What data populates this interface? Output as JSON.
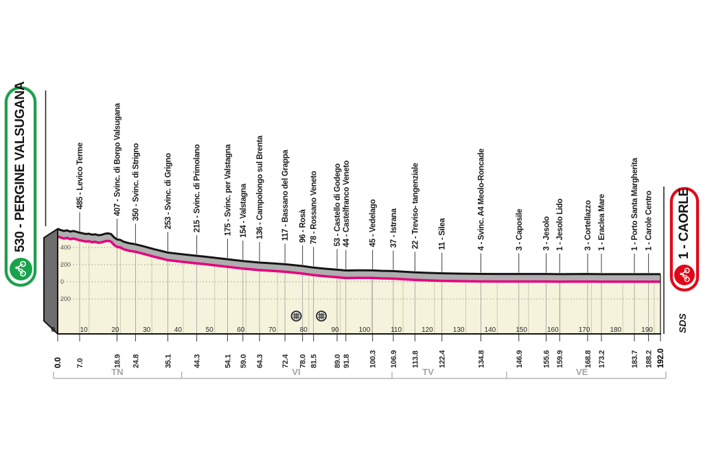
{
  "header": {
    "start_label": "530 - PERGINE VALSUGANA",
    "finish_label": "1 - CAORLE",
    "logo_text": "SDS"
  },
  "colors": {
    "start_accent": "#17a34a",
    "finish_accent": "#e30617",
    "profile_pink": "#e6007d",
    "terrain_fill": "#f6f3dc",
    "band_gray": "#aeaeae",
    "side_face_gray": "#6e6e6e",
    "edge_black": "#141414",
    "province_gray": "#a3a3a3",
    "grid_olive": "#cfcaa8"
  },
  "chart_data": {
    "type": "area",
    "title": "Stage altimetric profile Pergine Valsugana - Caorle",
    "x_unit": "km",
    "y_unit": "m",
    "x_range": [
      0,
      192
    ],
    "altitude_grid": [
      {
        "alt": 400,
        "label": "400"
      },
      {
        "alt": 200,
        "label": "200"
      },
      {
        "alt": 0,
        "label": "0"
      },
      {
        "alt": -200,
        "label": "200"
      }
    ],
    "km_grid_numbers": [
      10,
      20,
      30,
      40,
      50,
      60,
      70,
      80,
      90,
      100,
      110,
      120,
      130,
      140,
      150,
      160,
      170,
      180,
      190
    ],
    "km_zero_label": "0",
    "profile": [
      [
        0,
        530
      ],
      [
        1,
        515
      ],
      [
        2,
        505
      ],
      [
        3,
        512
      ],
      [
        4,
        498
      ],
      [
        5,
        505
      ],
      [
        6,
        495
      ],
      [
        7,
        485
      ],
      [
        8,
        478
      ],
      [
        9,
        470
      ],
      [
        10,
        473
      ],
      [
        11,
        462
      ],
      [
        12,
        466
      ],
      [
        13,
        455
      ],
      [
        14,
        460
      ],
      [
        15,
        472
      ],
      [
        16,
        478
      ],
      [
        17,
        470
      ],
      [
        18,
        430
      ],
      [
        18.9,
        407
      ],
      [
        20,
        400
      ],
      [
        21,
        380
      ],
      [
        22,
        370
      ],
      [
        23,
        360
      ],
      [
        24,
        355
      ],
      [
        24.8,
        350
      ],
      [
        27,
        330
      ],
      [
        29,
        310
      ],
      [
        31,
        290
      ],
      [
        33,
        272
      ],
      [
        35.1,
        253
      ],
      [
        38,
        240
      ],
      [
        41,
        228
      ],
      [
        44.3,
        215
      ],
      [
        47,
        205
      ],
      [
        50,
        192
      ],
      [
        54.1,
        175
      ],
      [
        59,
        154
      ],
      [
        64.3,
        136
      ],
      [
        68,
        128
      ],
      [
        72.4,
        117
      ],
      [
        78,
        96
      ],
      [
        81.5,
        78
      ],
      [
        85,
        65
      ],
      [
        89,
        53
      ],
      [
        91.8,
        44
      ],
      [
        96,
        46
      ],
      [
        100.3,
        45
      ],
      [
        103,
        40
      ],
      [
        106.9,
        37
      ],
      [
        110,
        30
      ],
      [
        113.8,
        22
      ],
      [
        118,
        16
      ],
      [
        122.4,
        11
      ],
      [
        128,
        7
      ],
      [
        134.8,
        4
      ],
      [
        140,
        3
      ],
      [
        146.9,
        3
      ],
      [
        152,
        3
      ],
      [
        155.6,
        3
      ],
      [
        159.9,
        1
      ],
      [
        164,
        2
      ],
      [
        168.8,
        3
      ],
      [
        173.2,
        1
      ],
      [
        178,
        1
      ],
      [
        183.7,
        1
      ],
      [
        188.2,
        1
      ],
      [
        192,
        1
      ]
    ],
    "waypoints": [
      {
        "km": 7.0,
        "alt": 485,
        "label": "485 - Levico Terme"
      },
      {
        "km": 18.9,
        "alt": 407,
        "label": "407 - Svinc. di Borgo Valsugana"
      },
      {
        "km": 24.8,
        "alt": 350,
        "label": "350 - Svinc. di Strigno"
      },
      {
        "km": 35.1,
        "alt": 253,
        "label": "253 - Svinc. di Grigno"
      },
      {
        "km": 44.3,
        "alt": 215,
        "label": "215 - Svinc. di Primolano"
      },
      {
        "km": 54.1,
        "alt": 175,
        "label": "175 - Svinc. per Valstagna"
      },
      {
        "km": 59.0,
        "alt": 154,
        "label": "154 - Valstagna"
      },
      {
        "km": 64.3,
        "alt": 136,
        "label": "136 - Campolongo sul Brenta"
      },
      {
        "km": 72.4,
        "alt": 117,
        "label": "117 - Bassano del Grappa"
      },
      {
        "km": 78.0,
        "alt": 96,
        "label": "96 - Rosà"
      },
      {
        "km": 81.5,
        "alt": 78,
        "label": "78 - Rossano Veneto"
      },
      {
        "km": 89.0,
        "alt": 53,
        "label": "53 - Castello di Godego"
      },
      {
        "km": 91.8,
        "alt": 44,
        "label": "44 - Castelfranco Veneto"
      },
      {
        "km": 100.3,
        "alt": 45,
        "label": "45 - Vedelago"
      },
      {
        "km": 106.9,
        "alt": 37,
        "label": "37 - Istrana"
      },
      {
        "km": 113.8,
        "alt": 22,
        "label": "22 - Treviso- tangenziale"
      },
      {
        "km": 122.4,
        "alt": 11,
        "label": "11 - Silea"
      },
      {
        "km": 134.8,
        "alt": 4,
        "label": "4 - Svinc. A4 Meolo-Roncade"
      },
      {
        "km": 146.9,
        "alt": 3,
        "label": "3 - Caposile"
      },
      {
        "km": 155.6,
        "alt": 3,
        "label": "3 - Jesolo"
      },
      {
        "km": 159.9,
        "alt": 1,
        "label": "1 - Jesolo Lido"
      },
      {
        "km": 168.8,
        "alt": 3,
        "label": "3 - Cortellazzo"
      },
      {
        "km": 173.2,
        "alt": 1,
        "label": "1 - Eraclea Mare"
      },
      {
        "km": 183.7,
        "alt": 1,
        "label": "1 - Porto Santa Margherita"
      },
      {
        "km": 188.2,
        "alt": 1,
        "label": "1 - Carole Centro"
      }
    ],
    "distance_labels": [
      {
        "km": 0.0,
        "label": "0.0",
        "bold": true
      },
      {
        "km": 7.0,
        "label": "7.0"
      },
      {
        "km": 18.9,
        "label": "18.9"
      },
      {
        "km": 24.8,
        "label": "24.8"
      },
      {
        "km": 35.1,
        "label": "35.1"
      },
      {
        "km": 44.3,
        "label": "44.3"
      },
      {
        "km": 54.1,
        "label": "54.1"
      },
      {
        "km": 59.0,
        "label": "59.0"
      },
      {
        "km": 64.3,
        "label": "64.3"
      },
      {
        "km": 72.4,
        "label": "72.4"
      },
      {
        "km": 78.0,
        "label": "78.0"
      },
      {
        "km": 81.5,
        "label": "81.5"
      },
      {
        "km": 89.0,
        "label": "89.0"
      },
      {
        "km": 91.8,
        "label": "91.8"
      },
      {
        "km": 100.3,
        "label": "100.3"
      },
      {
        "km": 106.9,
        "label": "106.9"
      },
      {
        "km": 113.8,
        "label": "113.8"
      },
      {
        "km": 122.4,
        "label": "122.4"
      },
      {
        "km": 134.8,
        "label": "134.8"
      },
      {
        "km": 146.9,
        "label": "146.9"
      },
      {
        "km": 155.6,
        "label": "155.6"
      },
      {
        "km": 159.9,
        "label": "159.9"
      },
      {
        "km": 168.8,
        "label": "168.8"
      },
      {
        "km": 173.2,
        "label": "173.2"
      },
      {
        "km": 183.7,
        "label": "183.7"
      },
      {
        "km": 188.2,
        "label": "188.2"
      },
      {
        "km": 192.0,
        "label": "192.0",
        "bold": true
      }
    ],
    "provinces": [
      {
        "code": "TN",
        "from_km": 0,
        "to_km": 39.5,
        "label_km": 19
      },
      {
        "code": "VI",
        "from_km": 39.5,
        "to_km": 106.5,
        "label_km": 76
      },
      {
        "code": "TV",
        "from_km": 106.5,
        "to_km": 143,
        "label_km": 118
      },
      {
        "code": "VE",
        "from_km": 143,
        "to_km": 192,
        "label_km": 167
      }
    ],
    "feed_zones_km": [
      76,
      84
    ],
    "legend_position": "none",
    "grid": true
  }
}
